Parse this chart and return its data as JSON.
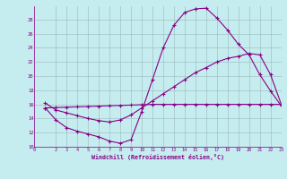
{
  "bg_color": "#c5ecee",
  "grid_color": "#9ab8ba",
  "line_color": "#880088",
  "xlabel": "Windchill (Refroidissement éolien,°C)",
  "xlim": [
    0,
    23
  ],
  "ylim": [
    10,
    30
  ],
  "yticks": [
    10,
    12,
    14,
    16,
    18,
    20,
    22,
    24,
    26,
    28
  ],
  "xticks": [
    0,
    2,
    3,
    4,
    5,
    6,
    7,
    8,
    9,
    10,
    11,
    12,
    13,
    14,
    15,
    16,
    17,
    18,
    19,
    20,
    21,
    22,
    23
  ],
  "line1_x": [
    1,
    2,
    3,
    4,
    5,
    6,
    7,
    8,
    9,
    10,
    11,
    12,
    13,
    14,
    15,
    16,
    17,
    18,
    19,
    20,
    21,
    22,
    23
  ],
  "line1_y": [
    15.5,
    13.8,
    12.7,
    12.2,
    11.8,
    11.4,
    10.8,
    10.5,
    11.0,
    15.0,
    19.5,
    24.0,
    27.2,
    29.0,
    29.5,
    29.6,
    28.2,
    26.5,
    24.5,
    23.0,
    20.2,
    17.9,
    15.8
  ],
  "line2_x": [
    1,
    2,
    3,
    4,
    5,
    6,
    7,
    8,
    9,
    10,
    11,
    12,
    13,
    14,
    15,
    16,
    17,
    18,
    19,
    20,
    21,
    22,
    23
  ],
  "line2_y": [
    16.2,
    15.2,
    14.8,
    14.4,
    14.0,
    13.7,
    13.5,
    13.8,
    14.5,
    15.5,
    16.5,
    17.5,
    18.5,
    19.5,
    20.5,
    21.2,
    22.0,
    22.5,
    22.8,
    23.2,
    23.0,
    20.2,
    16.0
  ],
  "line3_x": [
    1,
    2,
    3,
    4,
    5,
    6,
    7,
    8,
    9,
    10,
    11,
    12,
    13,
    14,
    15,
    16,
    17,
    18,
    19,
    20,
    21,
    22,
    23
  ],
  "line3_y": [
    15.5,
    15.55,
    15.6,
    15.65,
    15.7,
    15.75,
    15.8,
    15.85,
    15.9,
    15.95,
    16.0,
    16.0,
    16.0,
    16.0,
    16.0,
    16.0,
    16.0,
    16.0,
    16.0,
    16.0,
    16.0,
    16.0,
    16.0
  ]
}
